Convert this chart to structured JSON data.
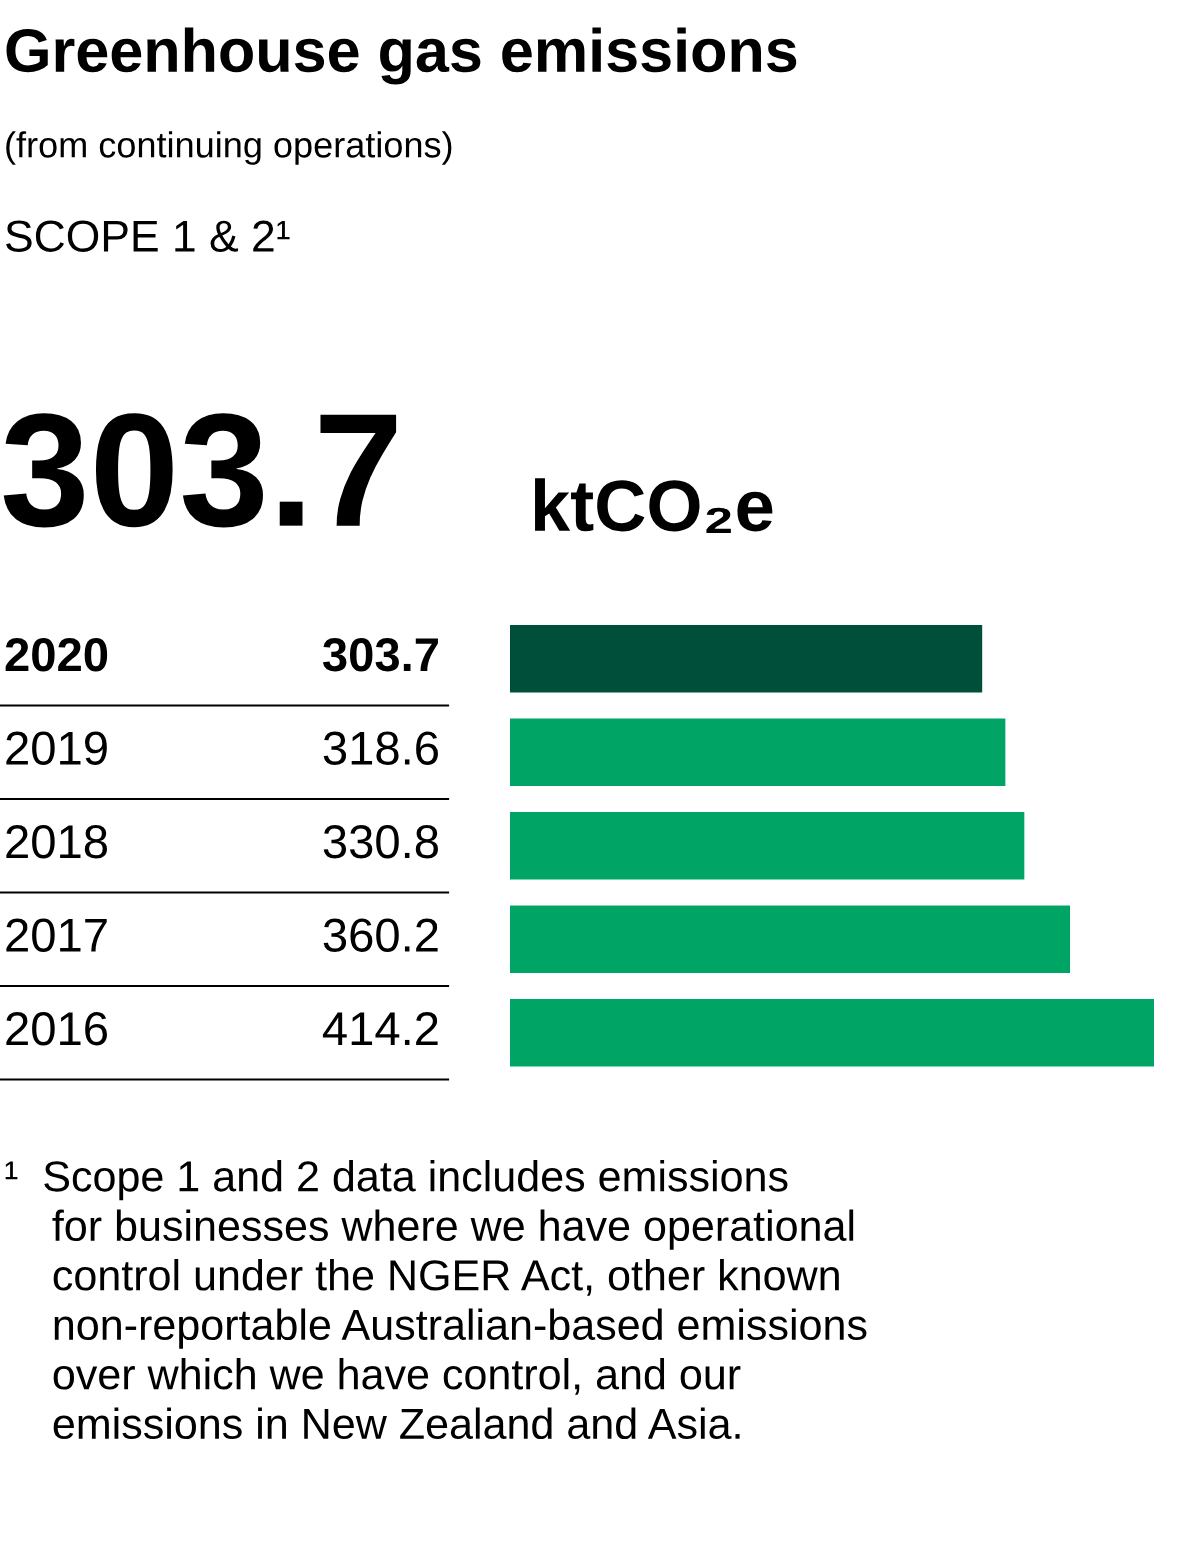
{
  "chart_data": {
    "type": "bar",
    "orientation": "horizontal",
    "title": "Greenhouse gas emissions",
    "subtitle": "(from continuing operations)",
    "categories": [
      "2020",
      "2019",
      "2018",
      "2017",
      "2016"
    ],
    "values": [
      303.7,
      318.6,
      330.8,
      360.2,
      414.2
    ],
    "colors": [
      "#004f3b",
      "#00a566",
      "#00a566",
      "#00a566",
      "#00a566"
    ],
    "data_labels": true,
    "tick_labels": false,
    "annotations": [
      "SCOPE 1 & 2¹",
      "303.7",
      "ktCO₂e",
      "¹  Scope 1 and 2 data includes emissions\n    for businesses where we have operational\n    control under the NGER Act, other known\n    non-reportable Australian-based emissions\n    over which we have control, and our\n    emissions in New Zealand and Asia."
    ]
  }
}
